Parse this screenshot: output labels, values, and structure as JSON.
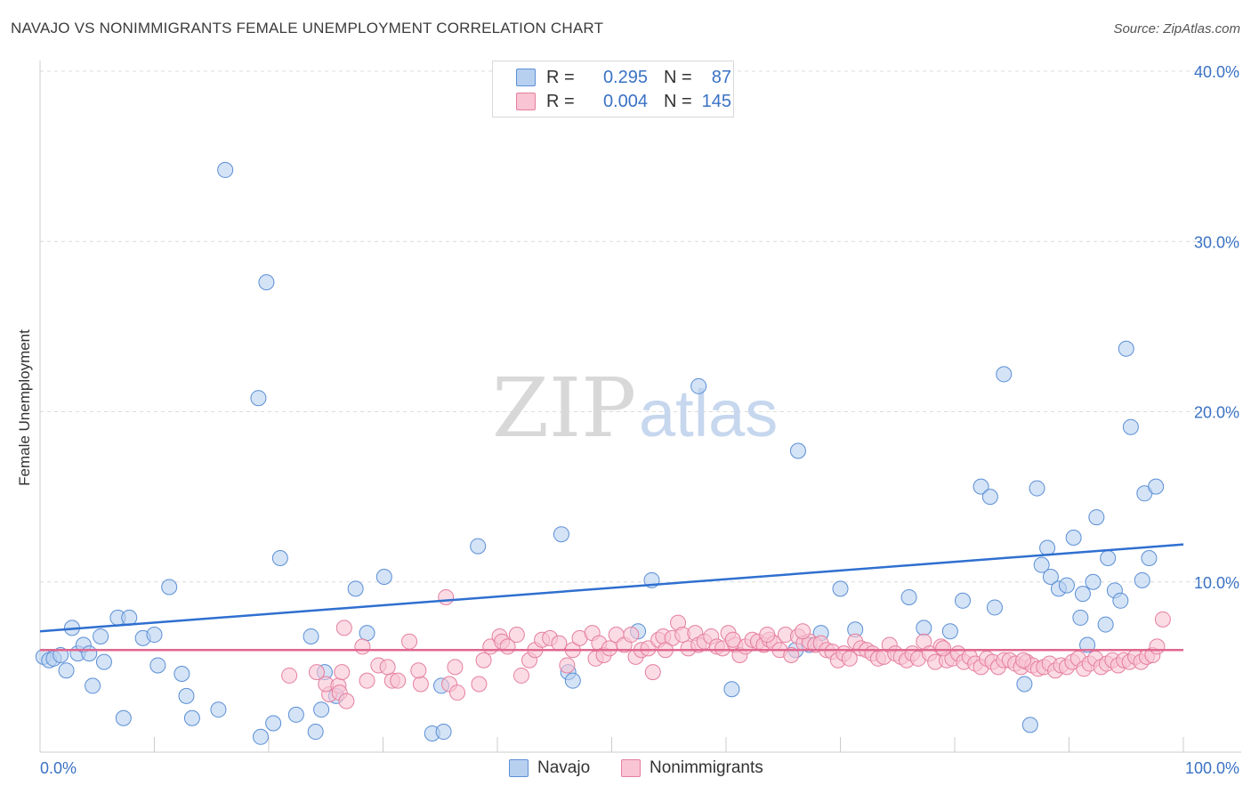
{
  "header": {
    "title": "NAVAJO VS NONIMMIGRANTS FEMALE UNEMPLOYMENT CORRELATION CHART",
    "source": "Source: ZipAtlas.com"
  },
  "legend": {
    "r_label": "R =",
    "n_label": "N =",
    "rows": [
      {
        "r": "0.295",
        "n": "87",
        "color": "#b8d0f0",
        "border": "#5b8fd6"
      },
      {
        "r": "0.004",
        "n": "145",
        "color": "#f9c4d4",
        "border": "#e57f9f"
      }
    ]
  },
  "bottom_legend": [
    {
      "label": "Navajo",
      "color": "#b8d0f0",
      "border": "#5b8fd6"
    },
    {
      "label": "Nonimmigrants",
      "color": "#f9c4d4",
      "border": "#e57f9f"
    }
  ],
  "watermark": {
    "zip": "ZIP",
    "atlas": "atlas"
  },
  "chart_data": {
    "type": "scatter",
    "title": "NAVAJO VS NONIMMIGRANTS FEMALE UNEMPLOYMENT CORRELATION CHART",
    "xlabel": "",
    "ylabel": "Female Unemployment",
    "xlim": [
      0,
      100
    ],
    "ylim": [
      0,
      40
    ],
    "x_tick_labels": [
      "0.0%",
      "100.0%"
    ],
    "y_ticks": [
      10,
      20,
      30,
      40
    ],
    "y_tick_labels": [
      "10.0%",
      "20.0%",
      "30.0%",
      "40.0%"
    ],
    "grid": "horizontal dashed",
    "legend_position": "top-center",
    "series": [
      {
        "name": "Navajo",
        "color": "#5b8fd6",
        "fill": "#b8d0f0",
        "r": 0.295,
        "n": 87,
        "trend": {
          "x": [
            0,
            100
          ],
          "y": [
            7.1,
            12.2
          ]
        },
        "points": [
          [
            0.3,
            5.6
          ],
          [
            0.8,
            5.4
          ],
          [
            1.2,
            5.5
          ],
          [
            1.8,
            5.7
          ],
          [
            2.3,
            4.8
          ],
          [
            2.8,
            7.3
          ],
          [
            3.3,
            5.8
          ],
          [
            3.8,
            6.3
          ],
          [
            4.3,
            5.8
          ],
          [
            4.6,
            3.9
          ],
          [
            5.3,
            6.8
          ],
          [
            5.6,
            5.3
          ],
          [
            7.3,
            2.0
          ],
          [
            6.8,
            7.9
          ],
          [
            7.8,
            7.9
          ],
          [
            9.0,
            6.7
          ],
          [
            10.0,
            6.9
          ],
          [
            10.3,
            5.1
          ],
          [
            11.3,
            9.7
          ],
          [
            12.4,
            4.6
          ],
          [
            12.8,
            3.3
          ],
          [
            13.3,
            2.0
          ],
          [
            15.6,
            2.5
          ],
          [
            16.2,
            34.2
          ],
          [
            19.3,
            0.9
          ],
          [
            19.1,
            20.8
          ],
          [
            20.4,
            1.7
          ],
          [
            19.8,
            27.6
          ],
          [
            21.0,
            11.4
          ],
          [
            22.4,
            2.2
          ],
          [
            23.7,
            6.8
          ],
          [
            24.1,
            1.2
          ],
          [
            24.6,
            2.5
          ],
          [
            24.9,
            4.7
          ],
          [
            25.9,
            3.3
          ],
          [
            27.6,
            9.6
          ],
          [
            28.6,
            7.0
          ],
          [
            30.1,
            10.3
          ],
          [
            34.3,
            1.1
          ],
          [
            35.1,
            3.9
          ],
          [
            35.3,
            1.2
          ],
          [
            38.3,
            12.1
          ],
          [
            45.6,
            12.8
          ],
          [
            46.2,
            4.7
          ],
          [
            46.6,
            4.2
          ],
          [
            52.3,
            7.1
          ],
          [
            53.5,
            10.1
          ],
          [
            57.6,
            21.5
          ],
          [
            60.5,
            3.7
          ],
          [
            66.3,
            17.7
          ],
          [
            66.1,
            6.0
          ],
          [
            68.3,
            7.0
          ],
          [
            67.3,
            6.3
          ],
          [
            70.0,
            9.6
          ],
          [
            71.3,
            7.2
          ],
          [
            76.0,
            9.1
          ],
          [
            77.3,
            7.3
          ],
          [
            79.6,
            7.1
          ],
          [
            80.7,
            8.9
          ],
          [
            82.3,
            15.6
          ],
          [
            83.1,
            15.0
          ],
          [
            84.3,
            22.2
          ],
          [
            83.5,
            8.5
          ],
          [
            86.1,
            4.0
          ],
          [
            87.2,
            15.5
          ],
          [
            88.1,
            12.0
          ],
          [
            86.6,
            1.6
          ],
          [
            87.6,
            11.0
          ],
          [
            88.4,
            10.3
          ],
          [
            89.1,
            9.6
          ],
          [
            89.8,
            9.8
          ],
          [
            90.4,
            12.6
          ],
          [
            91.2,
            9.3
          ],
          [
            91.6,
            6.3
          ],
          [
            92.1,
            10.0
          ],
          [
            92.4,
            13.8
          ],
          [
            93.2,
            7.5
          ],
          [
            93.4,
            11.4
          ],
          [
            94.0,
            9.5
          ],
          [
            94.5,
            8.9
          ],
          [
            95.0,
            23.7
          ],
          [
            95.4,
            19.1
          ],
          [
            96.4,
            10.1
          ],
          [
            96.6,
            15.2
          ],
          [
            97.0,
            11.4
          ],
          [
            97.6,
            15.6
          ],
          [
            91.0,
            7.9
          ]
        ]
      },
      {
        "name": "Nonimmigrants",
        "color": "#e57f9f",
        "fill": "#f9c4d4",
        "r": 0.004,
        "n": 145,
        "trend": {
          "x": [
            0,
            100
          ],
          "y": [
            6.0,
            6.0
          ]
        },
        "points": [
          [
            21.8,
            4.5
          ],
          [
            24.2,
            4.7
          ],
          [
            25.3,
            3.4
          ],
          [
            25.0,
            4.0
          ],
          [
            26.1,
            3.9
          ],
          [
            26.2,
            3.5
          ],
          [
            26.6,
            7.3
          ],
          [
            26.4,
            4.7
          ],
          [
            26.8,
            3.0
          ],
          [
            28.2,
            6.2
          ],
          [
            28.6,
            4.2
          ],
          [
            29.6,
            5.1
          ],
          [
            30.8,
            4.2
          ],
          [
            31.3,
            4.2
          ],
          [
            30.4,
            5.0
          ],
          [
            32.3,
            6.5
          ],
          [
            33.3,
            4.0
          ],
          [
            33.1,
            4.8
          ],
          [
            35.8,
            4.0
          ],
          [
            36.3,
            5.0
          ],
          [
            35.5,
            9.1
          ],
          [
            36.5,
            3.5
          ],
          [
            38.4,
            4.0
          ],
          [
            38.8,
            5.4
          ],
          [
            39.4,
            6.2
          ],
          [
            40.2,
            6.8
          ],
          [
            40.4,
            6.5
          ],
          [
            40.9,
            6.2
          ],
          [
            41.7,
            6.9
          ],
          [
            42.1,
            4.5
          ],
          [
            42.8,
            5.4
          ],
          [
            43.3,
            6.0
          ],
          [
            43.9,
            6.6
          ],
          [
            44.6,
            6.7
          ],
          [
            45.4,
            6.4
          ],
          [
            46.1,
            5.1
          ],
          [
            46.6,
            6.0
          ],
          [
            47.2,
            6.7
          ],
          [
            48.3,
            7.0
          ],
          [
            48.6,
            5.5
          ],
          [
            48.9,
            6.4
          ],
          [
            49.3,
            5.7
          ],
          [
            49.8,
            6.1
          ],
          [
            50.4,
            6.9
          ],
          [
            51.1,
            6.3
          ],
          [
            51.7,
            6.9
          ],
          [
            52.1,
            5.6
          ],
          [
            52.6,
            6.0
          ],
          [
            53.2,
            6.1
          ],
          [
            53.6,
            4.7
          ],
          [
            54.1,
            6.6
          ],
          [
            54.5,
            6.8
          ],
          [
            55.3,
            6.7
          ],
          [
            55.8,
            7.6
          ],
          [
            56.2,
            6.9
          ],
          [
            56.7,
            6.1
          ],
          [
            57.3,
            7.0
          ],
          [
            57.6,
            6.3
          ],
          [
            58.1,
            6.5
          ],
          [
            58.7,
            6.8
          ],
          [
            59.2,
            6.2
          ],
          [
            59.7,
            6.1
          ],
          [
            60.2,
            7.0
          ],
          [
            60.8,
            6.3
          ],
          [
            61.2,
            5.7
          ],
          [
            61.7,
            6.2
          ],
          [
            62.3,
            6.6
          ],
          [
            62.8,
            6.5
          ],
          [
            63.3,
            6.3
          ],
          [
            63.8,
            6.6
          ],
          [
            64.2,
            6.4
          ],
          [
            64.7,
            6.0
          ],
          [
            65.2,
            6.9
          ],
          [
            65.7,
            5.7
          ],
          [
            66.3,
            6.8
          ],
          [
            66.8,
            6.4
          ],
          [
            67.3,
            6.5
          ],
          [
            67.8,
            6.3
          ],
          [
            68.3,
            6.4
          ],
          [
            68.8,
            6.0
          ],
          [
            69.3,
            5.9
          ],
          [
            69.8,
            5.4
          ],
          [
            70.3,
            5.8
          ],
          [
            70.8,
            5.5
          ],
          [
            71.3,
            6.5
          ],
          [
            71.8,
            6.1
          ],
          [
            72.3,
            6.0
          ],
          [
            72.8,
            5.8
          ],
          [
            73.3,
            5.5
          ],
          [
            73.8,
            5.6
          ],
          [
            74.3,
            6.3
          ],
          [
            74.8,
            5.8
          ],
          [
            75.3,
            5.6
          ],
          [
            75.8,
            5.4
          ],
          [
            76.3,
            5.8
          ],
          [
            76.8,
            5.5
          ],
          [
            77.3,
            6.5
          ],
          [
            77.8,
            5.8
          ],
          [
            78.3,
            5.3
          ],
          [
            78.8,
            6.2
          ],
          [
            79.3,
            5.4
          ],
          [
            79.8,
            5.5
          ],
          [
            80.3,
            5.8
          ],
          [
            80.8,
            5.3
          ],
          [
            81.3,
            5.6
          ],
          [
            81.8,
            5.2
          ],
          [
            82.3,
            5.0
          ],
          [
            82.8,
            5.5
          ],
          [
            83.3,
            5.3
          ],
          [
            83.8,
            5.0
          ],
          [
            84.3,
            5.4
          ],
          [
            84.8,
            5.4
          ],
          [
            85.3,
            5.2
          ],
          [
            85.8,
            5.0
          ],
          [
            86.3,
            5.3
          ],
          [
            86.8,
            5.1
          ],
          [
            87.3,
            4.9
          ],
          [
            87.8,
            5.0
          ],
          [
            88.3,
            5.2
          ],
          [
            88.8,
            4.8
          ],
          [
            89.3,
            5.1
          ],
          [
            89.8,
            5.0
          ],
          [
            90.3,
            5.3
          ],
          [
            90.8,
            5.5
          ],
          [
            91.3,
            4.9
          ],
          [
            91.8,
            5.2
          ],
          [
            92.3,
            5.5
          ],
          [
            92.8,
            5.0
          ],
          [
            93.3,
            5.2
          ],
          [
            93.8,
            5.4
          ],
          [
            94.3,
            5.1
          ],
          [
            94.8,
            5.4
          ],
          [
            95.3,
            5.3
          ],
          [
            95.8,
            5.6
          ],
          [
            96.3,
            5.3
          ],
          [
            96.8,
            5.6
          ],
          [
            97.3,
            5.7
          ],
          [
            97.7,
            6.2
          ],
          [
            98.2,
            7.8
          ],
          [
            54.7,
            6.0
          ],
          [
            60.6,
            6.6
          ],
          [
            63.6,
            6.9
          ],
          [
            66.7,
            7.1
          ],
          [
            79.0,
            6.1
          ],
          [
            86.0,
            5.4
          ]
        ]
      }
    ]
  }
}
